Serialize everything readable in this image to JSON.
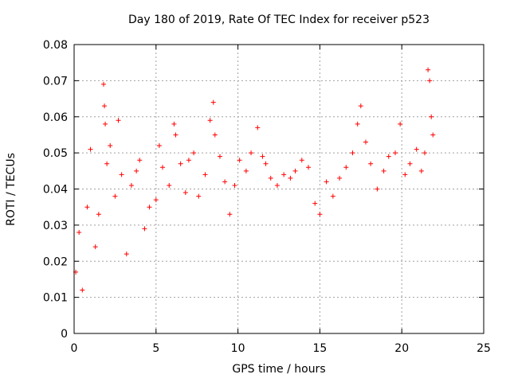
{
  "chart_data": {
    "type": "scatter",
    "title": "Day 180 of 2019, Rate Of TEC Index for receiver p523",
    "xlabel": "GPS time / hours",
    "ylabel": "ROTI / TECUs",
    "xlim": [
      0,
      25
    ],
    "ylim": [
      0,
      0.08
    ],
    "xticks": [
      "0",
      "5",
      "10",
      "15",
      "20",
      "25"
    ],
    "yticks": [
      "0",
      "0.01",
      "0.02",
      "0.03",
      "0.04",
      "0.05",
      "0.06",
      "0.07",
      "0.08"
    ],
    "grid": true,
    "marker": "+",
    "color": "#ff0000",
    "series": [
      {
        "x": [
          0.1,
          0.3,
          0.5,
          0.8,
          1.0,
          1.3,
          1.5,
          1.8,
          1.85,
          1.9,
          2.0,
          2.2,
          2.5,
          2.7,
          2.9,
          3.2,
          3.5,
          3.8,
          4.0,
          4.3,
          4.6,
          5.0,
          5.2,
          5.4,
          5.8,
          6.1,
          6.2,
          6.5,
          6.8,
          7.0,
          7.3,
          7.6,
          8.0,
          8.3,
          8.5,
          8.6,
          8.9,
          9.2,
          9.5,
          9.8,
          10.1,
          10.5,
          10.8,
          11.2,
          11.5,
          11.7,
          12.0,
          12.4,
          12.8,
          13.2,
          13.5,
          13.9,
          14.3,
          14.7,
          15.0,
          15.4,
          15.8,
          16.2,
          16.6,
          17.0,
          17.3,
          17.5,
          17.8,
          18.1,
          18.5,
          18.9,
          19.2,
          19.6,
          19.9,
          20.2,
          20.5,
          20.9,
          21.2,
          21.4,
          21.6,
          21.7,
          21.8,
          21.9
        ],
        "y": [
          0.017,
          0.028,
          0.012,
          0.035,
          0.051,
          0.024,
          0.033,
          0.069,
          0.063,
          0.058,
          0.047,
          0.052,
          0.038,
          0.059,
          0.044,
          0.022,
          0.041,
          0.045,
          0.048,
          0.029,
          0.035,
          0.037,
          0.052,
          0.046,
          0.041,
          0.058,
          0.055,
          0.047,
          0.039,
          0.048,
          0.05,
          0.038,
          0.044,
          0.059,
          0.064,
          0.055,
          0.049,
          0.042,
          0.033,
          0.041,
          0.048,
          0.045,
          0.05,
          0.057,
          0.049,
          0.047,
          0.043,
          0.041,
          0.044,
          0.043,
          0.045,
          0.048,
          0.046,
          0.036,
          0.033,
          0.042,
          0.038,
          0.043,
          0.046,
          0.05,
          0.058,
          0.063,
          0.053,
          0.047,
          0.04,
          0.045,
          0.049,
          0.05,
          0.058,
          0.044,
          0.047,
          0.051,
          0.045,
          0.05,
          0.073,
          0.07,
          0.06,
          0.055
        ]
      }
    ]
  }
}
